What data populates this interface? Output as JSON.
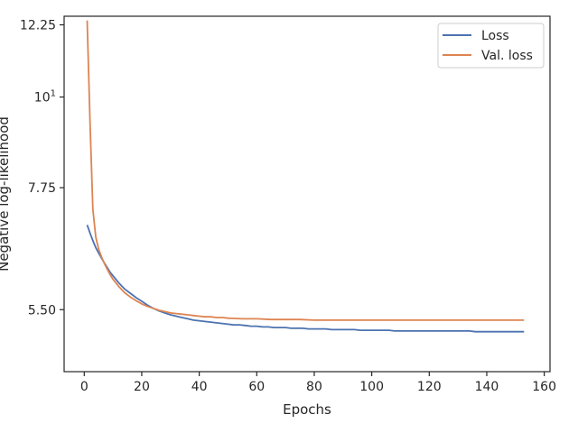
{
  "chart_data": {
    "type": "line",
    "xlabel": "Epochs",
    "ylabel": "Negative log-likelihood",
    "xlim": [
      -7,
      162
    ],
    "ylim": [
      4.62,
      12.55
    ],
    "yscale": "log",
    "grid": false,
    "legend_position": "top-right",
    "x_ticks": [
      {
        "value": 0,
        "label": "0"
      },
      {
        "value": 20,
        "label": "20"
      },
      {
        "value": 40,
        "label": "40"
      },
      {
        "value": 60,
        "label": "60"
      },
      {
        "value": 80,
        "label": "80"
      },
      {
        "value": 100,
        "label": "100"
      },
      {
        "value": 120,
        "label": "120"
      },
      {
        "value": 140,
        "label": "140"
      },
      {
        "value": 160,
        "label": "160"
      }
    ],
    "y_ticks": [
      {
        "value": 5.5,
        "label": "5.50"
      },
      {
        "value": 7.75,
        "label": "7.75"
      },
      {
        "value": 10.0,
        "label": "10",
        "exp": "1"
      },
      {
        "value": 12.25,
        "label": "12.25"
      }
    ],
    "series": [
      {
        "name": "Loss",
        "color": "#4c72b0",
        "x": [
          1,
          2,
          3,
          4,
          5,
          6,
          7,
          8,
          9,
          10,
          12,
          14,
          16,
          18,
          20,
          22,
          24,
          26,
          28,
          30,
          32,
          34,
          36,
          38,
          40,
          42,
          44,
          46,
          48,
          50,
          52,
          54,
          56,
          58,
          60,
          62,
          64,
          66,
          68,
          70,
          72,
          74,
          76,
          78,
          80,
          82,
          84,
          86,
          88,
          90,
          92,
          94,
          96,
          98,
          100,
          102,
          104,
          106,
          108,
          110,
          112,
          114,
          116,
          118,
          120,
          122,
          124,
          126,
          128,
          130,
          132,
          134,
          136,
          138,
          140,
          142,
          144,
          146,
          148,
          150,
          152,
          153
        ],
        "values": [
          6.98,
          6.82,
          6.68,
          6.55,
          6.45,
          6.36,
          6.27,
          6.19,
          6.11,
          6.05,
          5.93,
          5.83,
          5.76,
          5.69,
          5.63,
          5.57,
          5.52,
          5.48,
          5.45,
          5.42,
          5.4,
          5.38,
          5.36,
          5.34,
          5.33,
          5.32,
          5.31,
          5.3,
          5.29,
          5.28,
          5.27,
          5.27,
          5.26,
          5.25,
          5.25,
          5.24,
          5.24,
          5.23,
          5.23,
          5.23,
          5.22,
          5.22,
          5.22,
          5.21,
          5.21,
          5.21,
          5.21,
          5.2,
          5.2,
          5.2,
          5.2,
          5.2,
          5.19,
          5.19,
          5.19,
          5.19,
          5.19,
          5.19,
          5.18,
          5.18,
          5.18,
          5.18,
          5.18,
          5.18,
          5.18,
          5.18,
          5.18,
          5.18,
          5.18,
          5.18,
          5.18,
          5.18,
          5.17,
          5.17,
          5.17,
          5.17,
          5.17,
          5.17,
          5.17,
          5.17,
          5.17,
          5.17
        ]
      },
      {
        "name": "Val. loss",
        "color": "#dd8452",
        "x": [
          1,
          2,
          3,
          4,
          5,
          6,
          7,
          8,
          9,
          10,
          12,
          14,
          16,
          18,
          20,
          22,
          24,
          26,
          28,
          30,
          32,
          34,
          36,
          38,
          40,
          42,
          44,
          46,
          48,
          50,
          55,
          60,
          65,
          70,
          75,
          80,
          85,
          90,
          95,
          100,
          105,
          110,
          115,
          120,
          125,
          130,
          135,
          140,
          145,
          150,
          153
        ],
        "values": [
          12.4,
          9.3,
          7.3,
          6.75,
          6.52,
          6.38,
          6.26,
          6.16,
          6.07,
          5.99,
          5.87,
          5.77,
          5.7,
          5.64,
          5.59,
          5.55,
          5.52,
          5.49,
          5.47,
          5.45,
          5.44,
          5.43,
          5.42,
          5.41,
          5.4,
          5.39,
          5.39,
          5.38,
          5.38,
          5.37,
          5.36,
          5.36,
          5.35,
          5.35,
          5.35,
          5.34,
          5.34,
          5.34,
          5.34,
          5.34,
          5.34,
          5.34,
          5.34,
          5.34,
          5.34,
          5.34,
          5.34,
          5.34,
          5.34,
          5.34,
          5.34
        ]
      }
    ]
  }
}
